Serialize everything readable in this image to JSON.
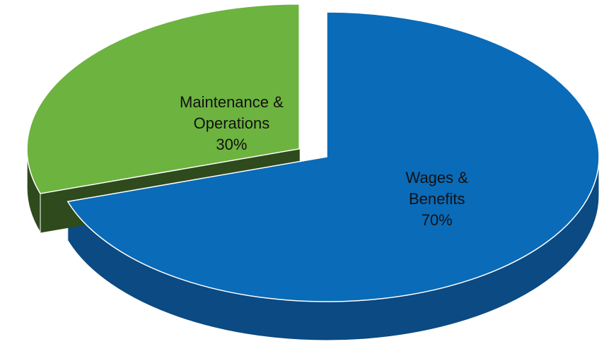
{
  "chart_data": {
    "type": "pie",
    "style": "3d-exploded",
    "categories": [
      "Wages & Benefits",
      "Maintenance & Operations"
    ],
    "values": [
      70,
      30
    ],
    "value_labels": [
      "70%",
      "30%"
    ],
    "colors": [
      "#0a6bb8",
      "#6db33f"
    ],
    "side_colors": [
      "#0b4a82",
      "#2f4a1c"
    ],
    "exploded": [
      false,
      true
    ]
  }
}
